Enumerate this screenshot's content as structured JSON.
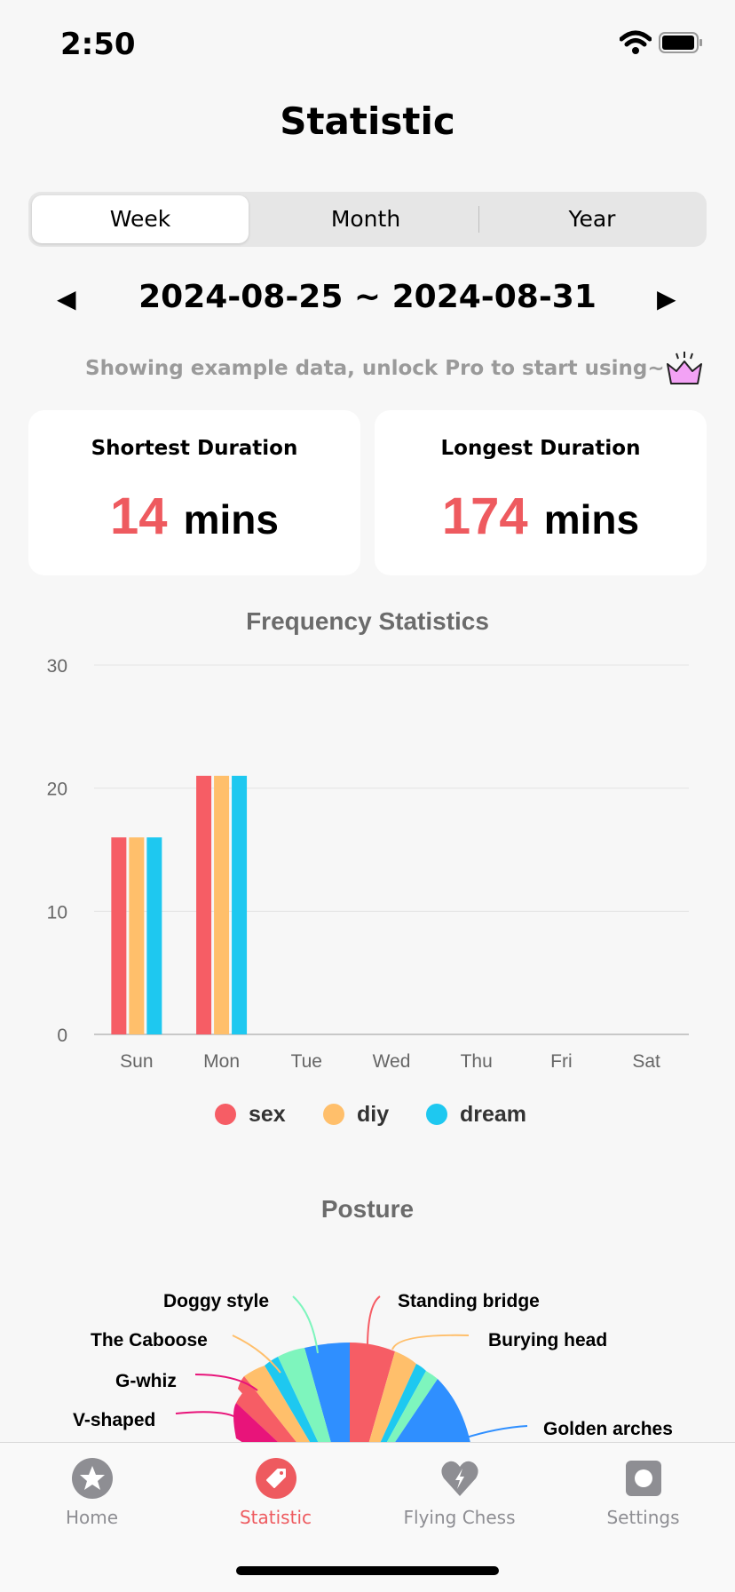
{
  "status_bar": {
    "time": "2:50"
  },
  "header": {
    "title": "Statistic"
  },
  "segmented": {
    "tabs": [
      "Week",
      "Month",
      "Year"
    ],
    "selected": "Week"
  },
  "date_nav": {
    "range": "2024-08-25 ~ 2024-08-31",
    "prev_icon": "triangle-left-icon",
    "next_icon": "triangle-right-icon"
  },
  "notice": {
    "text": "Showing example data, unlock Pro to start using~",
    "icon": "crown-icon"
  },
  "cards": [
    {
      "label": "Shortest Duration",
      "value": "14",
      "unit": "mins"
    },
    {
      "label": "Longest Duration",
      "value": "174",
      "unit": "mins"
    }
  ],
  "frequency": {
    "title": "Frequency Statistics"
  },
  "chart_data": {
    "type": "bar",
    "categories": [
      "Sun",
      "Mon",
      "Tue",
      "Wed",
      "Thu",
      "Fri",
      "Sat"
    ],
    "series": [
      {
        "name": "sex",
        "color": "#f65d65",
        "values": [
          16,
          21,
          0,
          0,
          0,
          0,
          0
        ]
      },
      {
        "name": "diy",
        "color": "#ffbf6b",
        "values": [
          16,
          21,
          0,
          0,
          0,
          0,
          0
        ]
      },
      {
        "name": "dream",
        "color": "#1ec8f0",
        "values": [
          16,
          21,
          0,
          0,
          0,
          0,
          0
        ]
      }
    ],
    "yticks": [
      0,
      10,
      20,
      30
    ],
    "ylim": [
      0,
      30
    ],
    "grid": true,
    "legend": "bottom"
  },
  "posture": {
    "title": "Posture",
    "labels": {
      "doggy": "Doggy style",
      "standing": "Standing bridge",
      "caboose": "The Caboose",
      "burying": "Burying head",
      "gwhiz": "G-whiz",
      "vshaped": "V-shaped",
      "golden": "Golden arches"
    }
  },
  "tabbar": {
    "items": [
      {
        "label": "Home",
        "icon": "star-icon"
      },
      {
        "label": "Statistic",
        "icon": "tag-icon"
      },
      {
        "label": "Flying Chess",
        "icon": "heart-bolt-icon"
      },
      {
        "label": "Settings",
        "icon": "settings-icon"
      }
    ],
    "active": "Statistic"
  }
}
